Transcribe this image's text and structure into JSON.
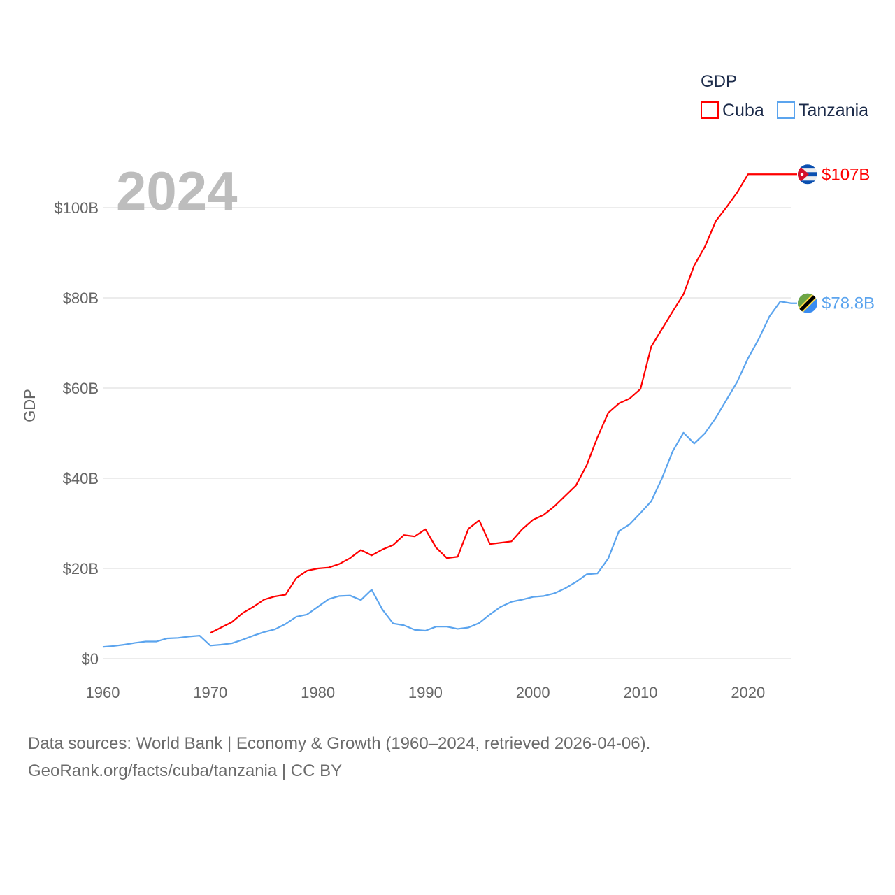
{
  "chart_data": {
    "type": "line",
    "title": "GDP",
    "year_label": "2024",
    "xlabel": "",
    "ylabel": "GDP",
    "xlim": [
      1960,
      2024
    ],
    "ylim": [
      0,
      110
    ],
    "x_ticks": [
      1960,
      1970,
      1980,
      1990,
      2000,
      2010,
      2020
    ],
    "x_tick_labels": [
      "1960",
      "1970",
      "1980",
      "1990",
      "2000",
      "2010",
      "2020"
    ],
    "y_ticks": [
      0,
      20,
      40,
      60,
      80,
      100
    ],
    "y_tick_labels": [
      "$0",
      "$20B",
      "$40B",
      "$60B",
      "$80B",
      "$100B"
    ],
    "grid": true,
    "legend_placement": "top-right",
    "units": "billions USD",
    "series": [
      {
        "name": "Cuba",
        "color": "#ff0000",
        "end_label": "$107B",
        "flag": "cuba-flag",
        "x_start": 1970,
        "values": [
          5.7,
          6.9,
          8.1,
          10.1,
          11.5,
          13.1,
          13.8,
          14.2,
          17.9,
          19.5,
          20.0,
          20.2,
          21.0,
          22.3,
          24.1,
          22.9,
          24.2,
          25.2,
          27.4,
          27.1,
          28.7,
          24.6,
          22.3,
          22.6,
          28.8,
          30.7,
          25.4,
          25.7,
          26.0,
          28.7,
          30.8,
          31.9,
          33.8,
          36.1,
          38.4,
          42.9,
          49.1,
          54.5,
          56.6,
          57.7,
          59.8,
          69.2,
          73.1,
          77.0,
          80.8,
          87.2,
          91.4,
          97.0,
          100.1,
          103.4,
          107.4
        ]
      },
      {
        "name": "Tanzania",
        "color": "#5ba4ee",
        "end_label": "$78.8B",
        "flag": "tanzania-flag",
        "x_start": 1960,
        "values": [
          2.6,
          2.8,
          3.1,
          3.5,
          3.8,
          3.8,
          4.5,
          4.6,
          4.9,
          5.1,
          2.9,
          3.1,
          3.4,
          4.2,
          5.1,
          5.9,
          6.5,
          7.7,
          9.3,
          9.8,
          11.5,
          13.2,
          13.9,
          14.0,
          13.0,
          15.3,
          10.9,
          7.8,
          7.4,
          6.4,
          6.2,
          7.1,
          7.1,
          6.6,
          6.9,
          7.9,
          9.8,
          11.5,
          12.6,
          13.1,
          13.7,
          13.9,
          14.5,
          15.6,
          17.0,
          18.7,
          18.9,
          22.2,
          28.3,
          29.8,
          32.3,
          34.9,
          40.0,
          46.0,
          50.1,
          47.7,
          50.0,
          53.4,
          57.4,
          61.4,
          66.6,
          70.9,
          75.9,
          79.2,
          78.8
        ]
      }
    ]
  },
  "footer": {
    "line1": "Data sources: World Bank | Economy & Growth (1960–2024, retrieved 2026-04-06).",
    "line2": "GeoRank.org/facts/cuba/tanzania | CC BY"
  }
}
